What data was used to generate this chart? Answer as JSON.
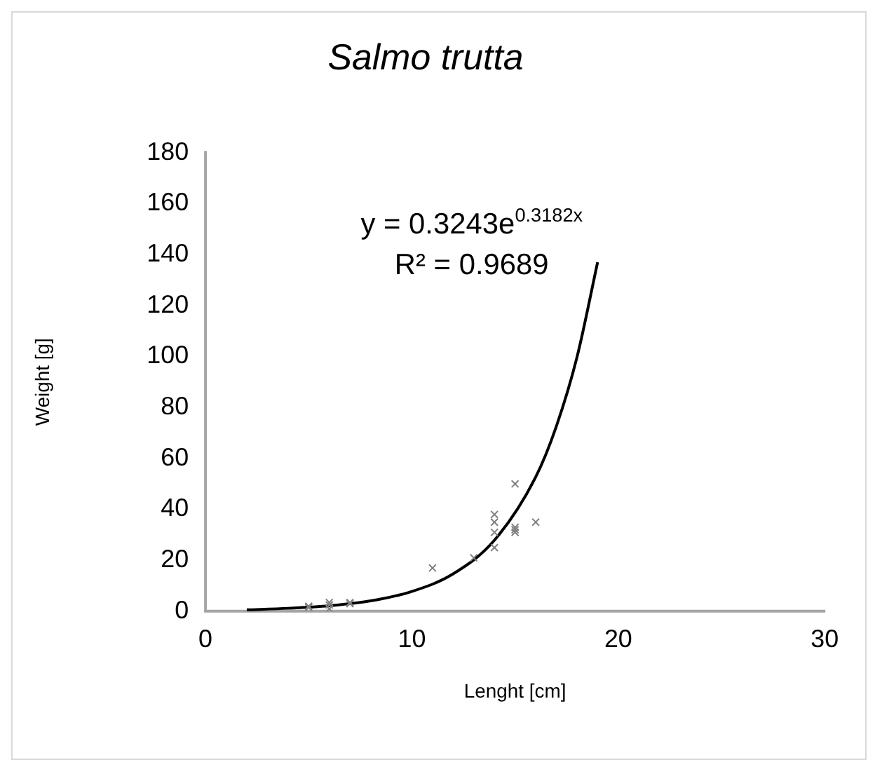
{
  "chart_data": {
    "type": "scatter",
    "title": "Salmo trutta",
    "xlabel": "Lenght [cm]",
    "ylabel": "Weight [g]",
    "annotations": [
      "y = 0.3243e$^{0.3182x}$",
      "R² = 0.9689"
    ],
    "xlim": [
      0,
      30
    ],
    "xticks": [
      0,
      10,
      20,
      30
    ],
    "ylim": [
      0,
      180
    ],
    "yticks": [
      0,
      20,
      40,
      60,
      80,
      100,
      120,
      140,
      160,
      180
    ],
    "grid": false,
    "legend": false,
    "series": [
      {
        "type": "scatter",
        "color": "#808080",
        "marker": "cross",
        "x": [
          5,
          5,
          6,
          6,
          6,
          7,
          7,
          11,
          13,
          14,
          14,
          14,
          14,
          15,
          15,
          15,
          15,
          16
        ],
        "values": [
          2,
          1.5,
          1,
          2.5,
          3.5,
          3,
          3.5,
          17,
          21,
          38,
          35,
          31,
          25,
          50,
          33,
          32,
          31,
          35
        ]
      },
      {
        "type": "line",
        "color": "#000000",
        "marker": "none",
        "x": [
          2,
          4,
          6,
          8,
          10,
          12,
          14,
          16,
          17,
          18,
          19
        ],
        "values": [
          0.6,
          1.2,
          2.2,
          4.1,
          7.8,
          14.7,
          27.9,
          52.7,
          72.6,
          99.7,
          137
        ]
      }
    ]
  }
}
